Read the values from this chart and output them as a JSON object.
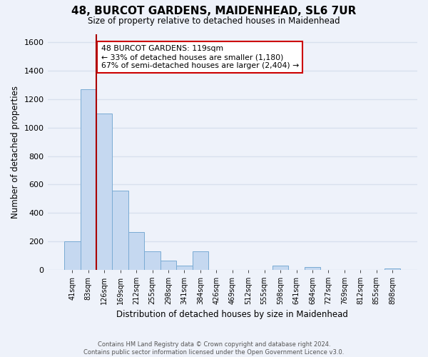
{
  "title": "48, BURCOT GARDENS, MAIDENHEAD, SL6 7UR",
  "subtitle": "Size of property relative to detached houses in Maidenhead",
  "xlabel": "Distribution of detached houses by size in Maidenhead",
  "ylabel": "Number of detached properties",
  "bar_labels": [
    "41sqm",
    "83sqm",
    "126sqm",
    "169sqm",
    "212sqm",
    "255sqm",
    "298sqm",
    "341sqm",
    "384sqm",
    "426sqm",
    "469sqm",
    "512sqm",
    "555sqm",
    "598sqm",
    "641sqm",
    "684sqm",
    "727sqm",
    "769sqm",
    "812sqm",
    "855sqm",
    "898sqm"
  ],
  "bar_values": [
    200,
    1270,
    1100,
    555,
    265,
    130,
    65,
    30,
    130,
    0,
    0,
    0,
    0,
    30,
    0,
    20,
    0,
    0,
    0,
    0,
    10
  ],
  "ylim": [
    0,
    1660
  ],
  "yticks": [
    0,
    200,
    400,
    600,
    800,
    1000,
    1200,
    1400,
    1600
  ],
  "bar_color": "#c5d8f0",
  "bar_edge_color": "#7aabd4",
  "property_line_color": "#aa0000",
  "annotation_title": "48 BURCOT GARDENS: 119sqm",
  "annotation_line1": "← 33% of detached houses are smaller (1,180)",
  "annotation_line2": "67% of semi-detached houses are larger (2,404) →",
  "annotation_box_color": "#ffffff",
  "annotation_box_edge": "#cc0000",
  "footer_line1": "Contains HM Land Registry data © Crown copyright and database right 2024.",
  "footer_line2": "Contains public sector information licensed under the Open Government Licence v3.0.",
  "bg_color": "#eef2fa",
  "grid_color": "#d8e0ee"
}
